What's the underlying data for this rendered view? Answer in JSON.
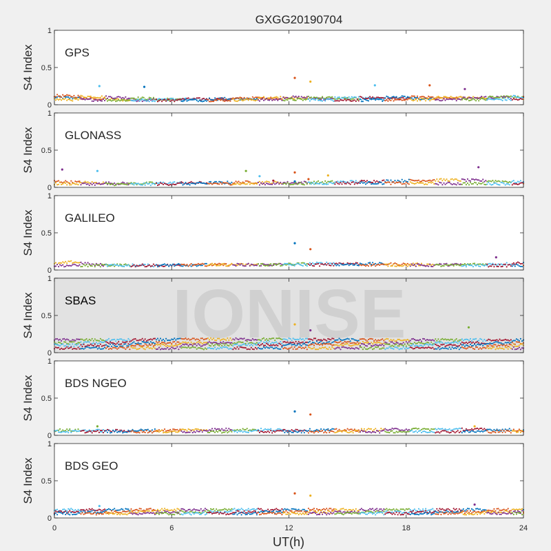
{
  "chart_data": {
    "type": "scatter",
    "title": "GXGG20190704",
    "xlabel": "UT(h)",
    "ylabel": "S4 Index",
    "xlim": [
      0,
      24
    ],
    "ylim": [
      0,
      1
    ],
    "x_ticks": [
      "0",
      "6",
      "12",
      "18",
      "24"
    ],
    "y_ticks": [
      "0",
      "0.5",
      "1"
    ],
    "watermark": "IONISE",
    "grid": false,
    "colors": [
      "#0072BD",
      "#D95319",
      "#EDB120",
      "#7E2F8E",
      "#77AC30",
      "#4DBEEE",
      "#A2142F"
    ],
    "panels": [
      {
        "label": "GPS",
        "series": [
          {
            "points": [
              [
                0,
                0.1
              ],
              [
                2,
                0.08
              ],
              [
                4,
                0.06
              ],
              [
                6,
                0.07
              ],
              [
                8,
                0.07
              ],
              [
                10,
                0.08
              ],
              [
                12,
                0.09
              ],
              [
                14,
                0.08
              ],
              [
                16,
                0.08
              ],
              [
                18,
                0.08
              ],
              [
                20,
                0.09
              ],
              [
                22,
                0.09
              ],
              [
                24,
                0.1
              ]
            ]
          },
          {
            "points": [
              [
                0,
                0.12
              ],
              [
                3,
                0.1
              ],
              [
                6,
                0.07
              ],
              [
                9,
                0.08
              ],
              [
                12,
                0.1
              ],
              [
                15,
                0.09
              ],
              [
                18,
                0.1
              ],
              [
                21,
                0.09
              ],
              [
                24,
                0.11
              ]
            ]
          },
          {
            "points": [
              [
                0,
                0.07
              ],
              [
                4,
                0.06
              ],
              [
                8,
                0.06
              ],
              [
                12,
                0.07
              ],
              [
                16,
                0.06
              ],
              [
                20,
                0.07
              ],
              [
                24,
                0.07
              ]
            ]
          },
          {
            "points": [
              [
                12.3,
                0.36
              ],
              [
                13.1,
                0.31
              ],
              [
                2.3,
                0.25
              ],
              [
                4.6,
                0.24
              ],
              [
                16.4,
                0.26
              ],
              [
                19.2,
                0.26
              ],
              [
                21.0,
                0.21
              ]
            ]
          }
        ]
      },
      {
        "label": "GLONASS",
        "series": [
          {
            "points": [
              [
                0,
                0.08
              ],
              [
                2,
                0.06
              ],
              [
                4,
                0.05
              ],
              [
                6,
                0.06
              ],
              [
                8,
                0.06
              ],
              [
                10,
                0.07
              ],
              [
                12,
                0.06
              ],
              [
                14,
                0.07
              ],
              [
                16,
                0.08
              ],
              [
                18,
                0.09
              ],
              [
                20,
                0.1
              ],
              [
                22,
                0.09
              ],
              [
                24,
                0.07
              ]
            ]
          },
          {
            "points": [
              [
                0,
                0.05
              ],
              [
                4,
                0.04
              ],
              [
                8,
                0.05
              ],
              [
                12,
                0.05
              ],
              [
                16,
                0.06
              ],
              [
                20,
                0.05
              ],
              [
                24,
                0.05
              ]
            ]
          },
          {
            "points": [
              [
                9.8,
                0.22
              ],
              [
                10.5,
                0.15
              ],
              [
                11.2,
                0.09
              ],
              [
                12.3,
                0.08
              ],
              [
                13,
                0.11
              ],
              [
                14,
                0.16
              ]
            ]
          },
          {
            "points": [
              [
                0.4,
                0.24
              ],
              [
                2.2,
                0.22
              ],
              [
                12.3,
                0.2
              ],
              [
                21.7,
                0.27
              ]
            ]
          }
        ]
      },
      {
        "label": "GALILEO",
        "series": [
          {
            "points": [
              [
                0,
                0.08
              ],
              [
                1,
                0.11
              ],
              [
                2,
                0.07
              ],
              [
                5,
                0.06
              ],
              [
                8,
                0.07
              ],
              [
                11,
                0.07
              ],
              [
                14,
                0.09
              ],
              [
                17,
                0.08
              ],
              [
                20,
                0.07
              ],
              [
                23,
                0.08
              ],
              [
                24,
                0.1
              ]
            ]
          },
          {
            "points": [
              [
                0,
                0.06
              ],
              [
                4,
                0.06
              ],
              [
                8,
                0.07
              ],
              [
                12,
                0.07
              ],
              [
                16,
                0.07
              ],
              [
                20,
                0.06
              ],
              [
                24,
                0.06
              ]
            ]
          },
          {
            "points": [
              [
                12.3,
                0.36
              ],
              [
                13.1,
                0.28
              ],
              [
                22.6,
                0.17
              ]
            ]
          }
        ]
      },
      {
        "label": "SBAS",
        "series": [
          {
            "points": [
              [
                0,
                0.17
              ],
              [
                4,
                0.17
              ],
              [
                8,
                0.18
              ],
              [
                12,
                0.18
              ],
              [
                16,
                0.17
              ],
              [
                20,
                0.17
              ],
              [
                24,
                0.17
              ]
            ]
          },
          {
            "points": [
              [
                0,
                0.13
              ],
              [
                4,
                0.13
              ],
              [
                8,
                0.13
              ],
              [
                12,
                0.14
              ],
              [
                16,
                0.13
              ],
              [
                20,
                0.13
              ],
              [
                24,
                0.13
              ]
            ]
          },
          {
            "points": [
              [
                0,
                0.1
              ],
              [
                6,
                0.1
              ],
              [
                12,
                0.11
              ],
              [
                18,
                0.1
              ],
              [
                24,
                0.1
              ]
            ]
          },
          {
            "points": [
              [
                0,
                0.06
              ],
              [
                6,
                0.06
              ],
              [
                12,
                0.06
              ],
              [
                18,
                0.06
              ],
              [
                24,
                0.06
              ]
            ]
          },
          {
            "points": [
              [
                12.3,
                0.38
              ],
              [
                13.1,
                0.3
              ],
              [
                21.2,
                0.34
              ]
            ]
          }
        ]
      },
      {
        "label": "BDS NGEO",
        "series": [
          {
            "points": [
              [
                0,
                0.07
              ],
              [
                3,
                0.06
              ],
              [
                6,
                0.07
              ],
              [
                9,
                0.08
              ],
              [
                12,
                0.07
              ],
              [
                15,
                0.07
              ],
              [
                18,
                0.08
              ],
              [
                21,
                0.08
              ],
              [
                24,
                0.07
              ]
            ]
          },
          {
            "points": [
              [
                0,
                0.05
              ],
              [
                6,
                0.05
              ],
              [
                12,
                0.05
              ],
              [
                18,
                0.05
              ],
              [
                24,
                0.05
              ]
            ]
          },
          {
            "points": [
              [
                12.3,
                0.32
              ],
              [
                13.1,
                0.28
              ],
              [
                2.2,
                0.12
              ],
              [
                21.5,
                0.12
              ]
            ]
          }
        ]
      },
      {
        "label": "BDS GEO",
        "series": [
          {
            "points": [
              [
                0,
                0.11
              ],
              [
                6,
                0.11
              ],
              [
                12,
                0.11
              ],
              [
                18,
                0.11
              ],
              [
                24,
                0.11
              ]
            ]
          },
          {
            "points": [
              [
                0,
                0.08
              ],
              [
                6,
                0.08
              ],
              [
                12,
                0.08
              ],
              [
                18,
                0.08
              ],
              [
                24,
                0.08
              ]
            ]
          },
          {
            "points": [
              [
                0,
                0.06
              ],
              [
                6,
                0.06
              ],
              [
                12,
                0.06
              ],
              [
                18,
                0.06
              ],
              [
                24,
                0.06
              ]
            ]
          },
          {
            "points": [
              [
                12.3,
                0.33
              ],
              [
                13.1,
                0.3
              ],
              [
                2.3,
                0.16
              ],
              [
                21.5,
                0.18
              ]
            ]
          }
        ]
      }
    ]
  }
}
